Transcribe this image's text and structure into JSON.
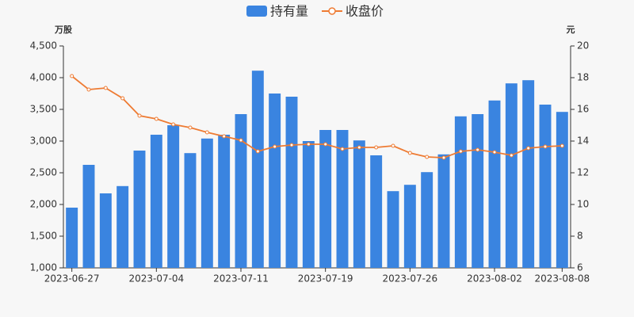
{
  "chart_data": {
    "type": "bar_line",
    "y_label": "万股",
    "y2_label": "元",
    "categories": [
      "2023-06-27",
      null,
      null,
      null,
      null,
      "2023-07-04",
      null,
      null,
      null,
      null,
      "2023-07-11",
      null,
      null,
      null,
      null,
      "2023-07-19",
      null,
      null,
      null,
      null,
      "2023-07-26",
      null,
      null,
      null,
      null,
      "2023-08-02",
      null,
      null,
      null,
      "2023-08-08"
    ],
    "series": [
      {
        "name": "持有量",
        "type": "bar",
        "color": "#3a84e0",
        "axis": "y",
        "values": [
          1950,
          2625,
          2175,
          2290,
          2850,
          3100,
          3250,
          2810,
          3040,
          3100,
          3425,
          4110,
          3750,
          3700,
          3000,
          3175,
          3175,
          3010,
          2775,
          2210,
          2310,
          2510,
          2790,
          3390,
          3425,
          3640,
          3910,
          3960,
          3575,
          3460
        ]
      },
      {
        "name": "收盘价",
        "type": "line",
        "color": "#ee7b33",
        "axis": "y2",
        "values": [
          18.1,
          17.25,
          17.35,
          16.7,
          15.6,
          15.4,
          15.05,
          14.85,
          14.55,
          14.3,
          14.05,
          13.35,
          13.65,
          13.75,
          13.8,
          13.8,
          13.5,
          13.6,
          13.6,
          13.7,
          13.25,
          13.0,
          12.95,
          13.35,
          13.45,
          13.3,
          13.1,
          13.55,
          13.65,
          13.7
        ]
      }
    ],
    "ylim": [
      1000,
      4500
    ],
    "yticks": [
      {
        "value": 1000,
        "label": "1,000"
      },
      {
        "value": 1500,
        "label": "1,500"
      },
      {
        "value": 2000,
        "label": "2,000"
      },
      {
        "value": 2500,
        "label": "2,500"
      },
      {
        "value": 3000,
        "label": "3,000"
      },
      {
        "value": 3500,
        "label": "3,500"
      },
      {
        "value": 4000,
        "label": "4,000"
      },
      {
        "value": 4500,
        "label": "4,500"
      }
    ],
    "y2lim": [
      6,
      20
    ],
    "y2ticks": [
      6,
      8,
      10,
      12,
      14,
      16,
      18,
      20
    ]
  }
}
